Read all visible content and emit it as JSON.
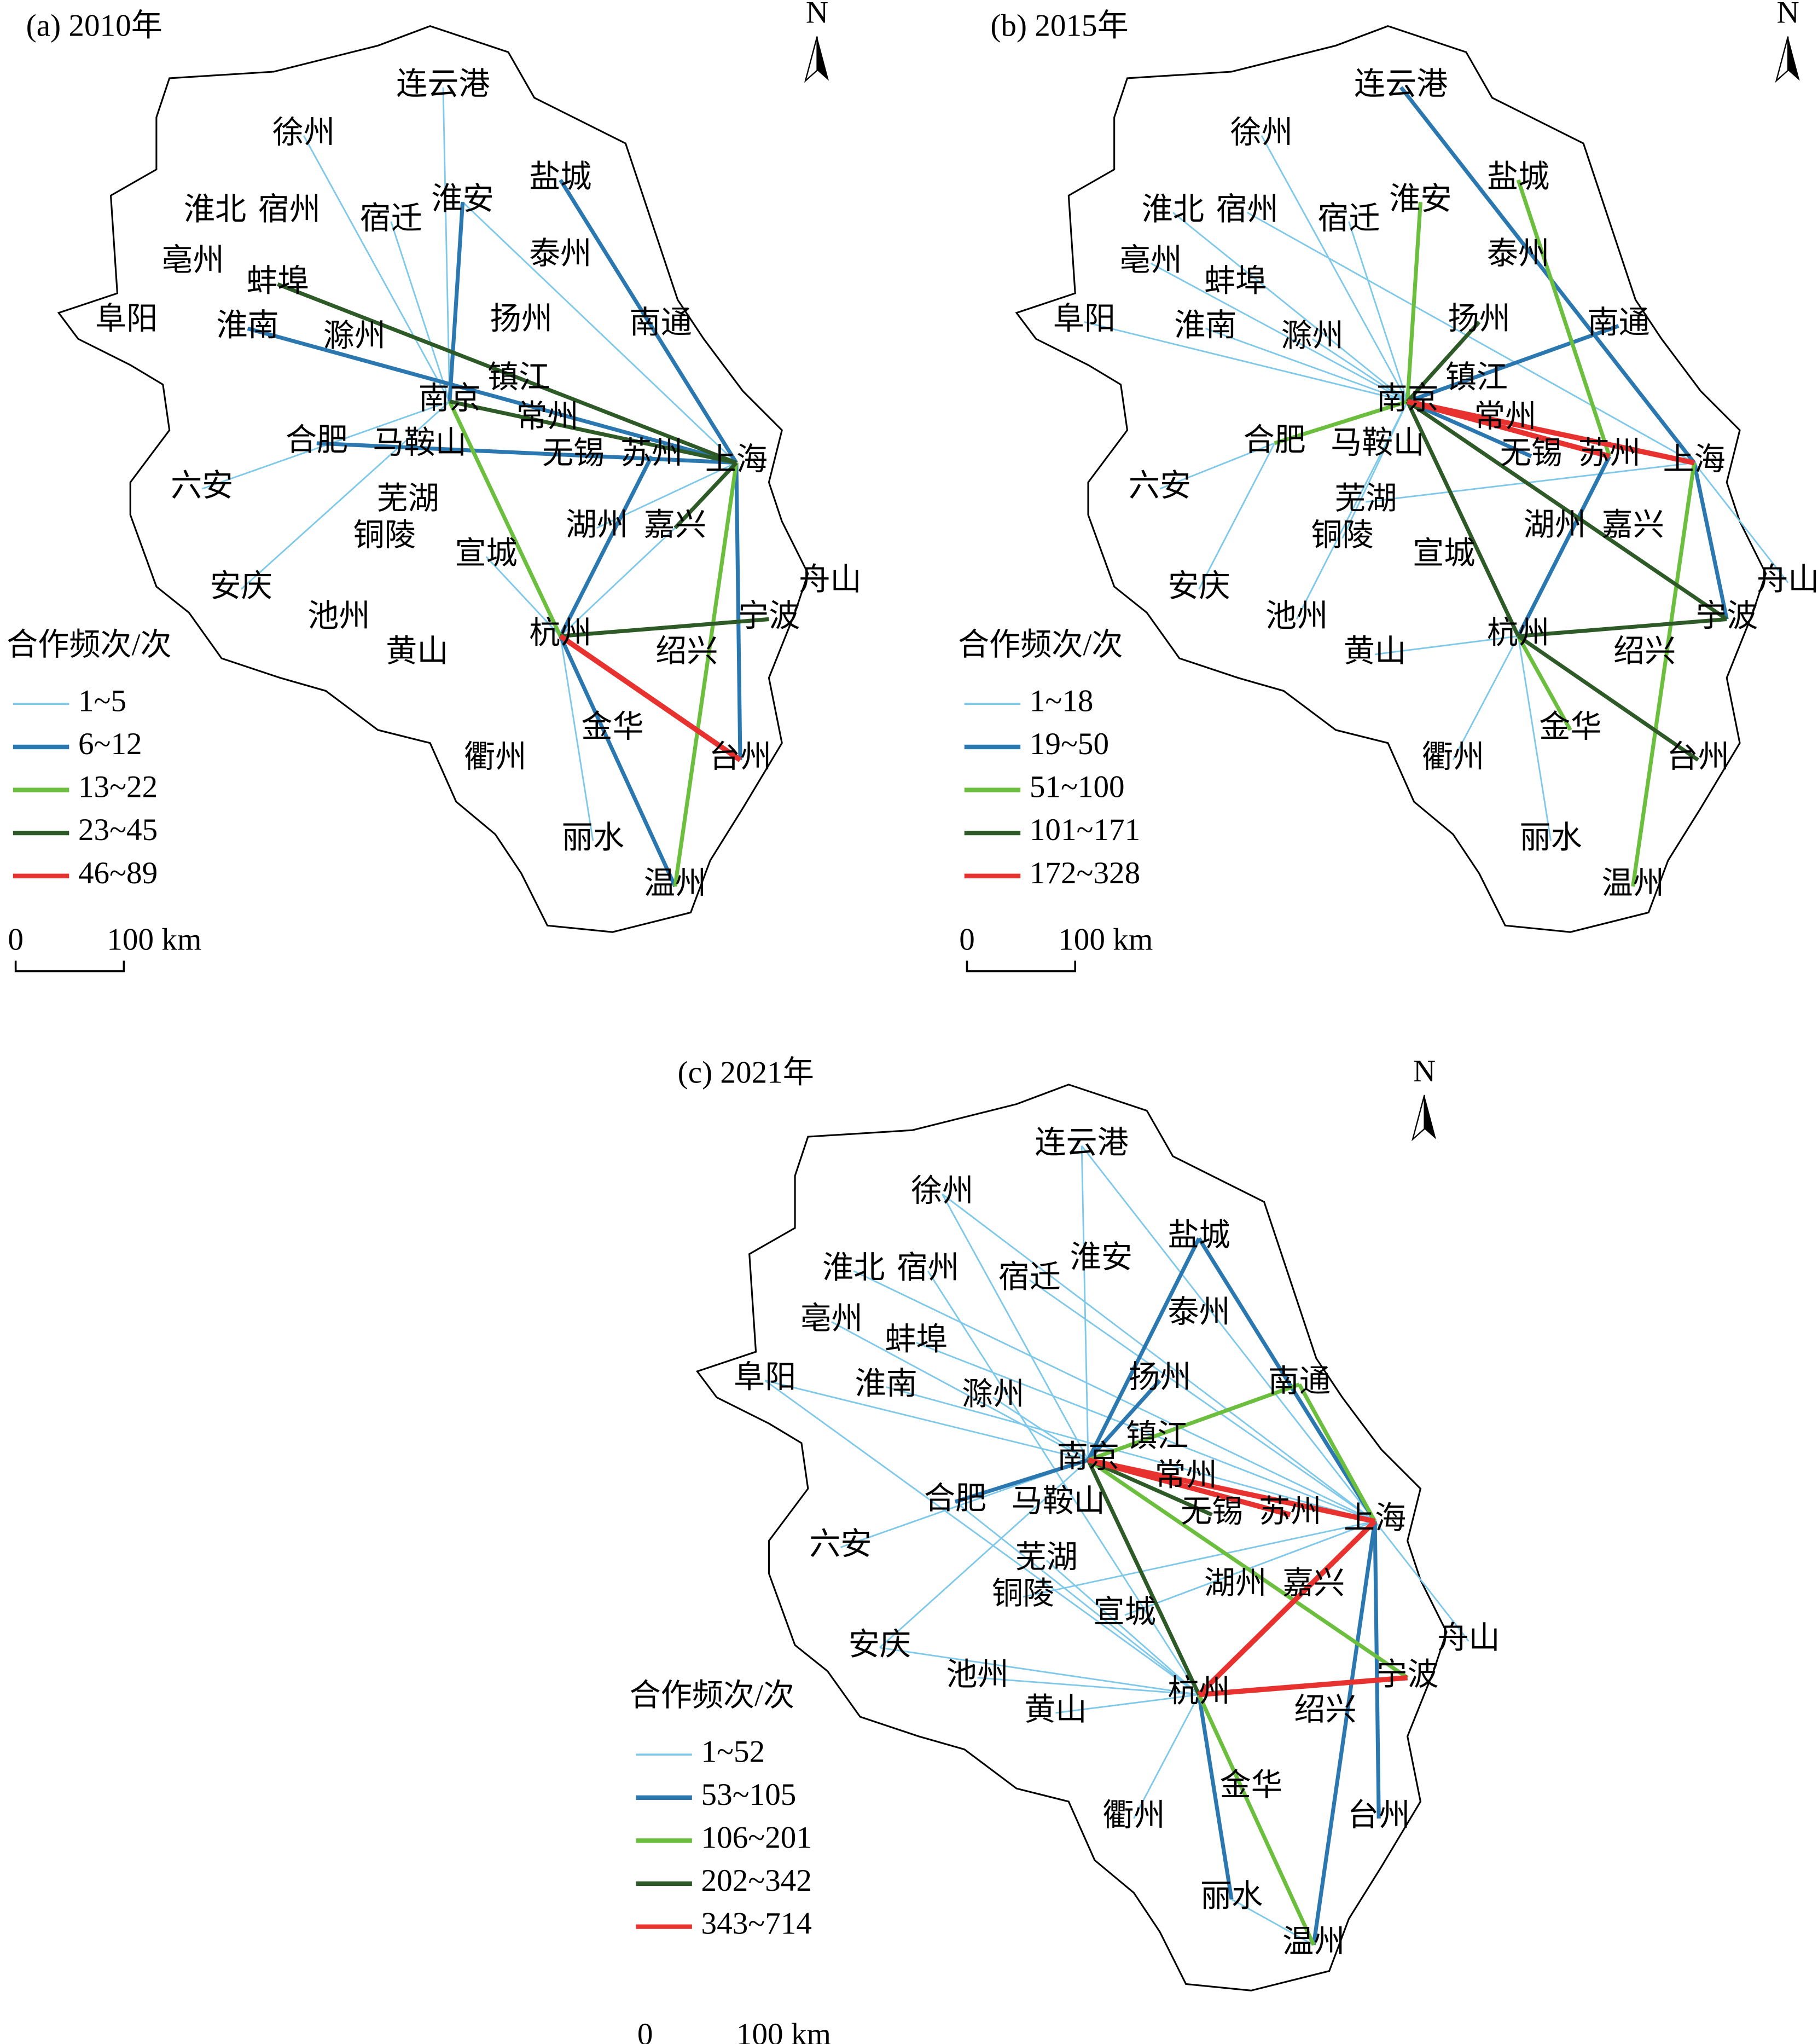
{
  "north": "N",
  "cities": [
    "连云港",
    "徐州",
    "宿迁",
    "淮安",
    "盐城",
    "淮北",
    "宿州",
    "泰州",
    "亳州",
    "蚌埠",
    "扬州",
    "南通",
    "阜阳",
    "淮南",
    "滁州",
    "镇江",
    "南京",
    "常州",
    "合肥",
    "马鞍山",
    "无锡",
    "苏州",
    "上海",
    "六安",
    "芜湖",
    "铜陵",
    "嘉兴",
    "湖州",
    "宣城",
    "安庆",
    "池州",
    "舟山",
    "宁波",
    "杭州",
    "黄山",
    "绍兴",
    "金华",
    "台州",
    "衢州",
    "丽水",
    "温州"
  ],
  "panels": [
    {
      "title": "(a) 2010年",
      "legend": {
        "title": "合作频次/次",
        "items": [
          {
            "label": "1~5",
            "color": "#7ec8ea"
          },
          {
            "label": "6~12",
            "color": "#2b78b0"
          },
          {
            "label": "13~22",
            "color": "#6cbf3e"
          },
          {
            "label": "23~45",
            "color": "#2d5a27"
          },
          {
            "label": "46~89",
            "color": "#e8322f"
          }
        ]
      },
      "scale_bar": {
        "zero": "0",
        "label": "100 km"
      },
      "links": [
        [
          0,
          16,
          0
        ],
        [
          1,
          16,
          0
        ],
        [
          2,
          16,
          0
        ],
        [
          3,
          22,
          0
        ],
        [
          23,
          16,
          0
        ],
        [
          18,
          22,
          0
        ],
        [
          29,
          16,
          0
        ],
        [
          33,
          26,
          0
        ],
        [
          33,
          40,
          0
        ],
        [
          16,
          33,
          0
        ],
        [
          27,
          22,
          0
        ],
        [
          28,
          33,
          0
        ],
        [
          33,
          37,
          0
        ],
        [
          39,
          33,
          0
        ],
        [
          4,
          22,
          1
        ],
        [
          3,
          16,
          1
        ],
        [
          13,
          22,
          1
        ],
        [
          18,
          22,
          1
        ],
        [
          33,
          21,
          1
        ],
        [
          40,
          33,
          1
        ],
        [
          22,
          37,
          1
        ],
        [
          16,
          22,
          2
        ],
        [
          22,
          40,
          2
        ],
        [
          16,
          33,
          2
        ],
        [
          33,
          32,
          2
        ],
        [
          9,
          22,
          3
        ],
        [
          16,
          22,
          3
        ],
        [
          33,
          32,
          3
        ],
        [
          26,
          22,
          3
        ],
        [
          33,
          37,
          4
        ]
      ]
    },
    {
      "title": "(b) 2015年",
      "legend": {
        "title": "合作频次/次",
        "items": [
          {
            "label": "1~18",
            "color": "#7ec8ea"
          },
          {
            "label": "19~50",
            "color": "#2b78b0"
          },
          {
            "label": "51~100",
            "color": "#6cbf3e"
          },
          {
            "label": "101~171",
            "color": "#2d5a27"
          },
          {
            "label": "172~328",
            "color": "#e8322f"
          }
        ]
      },
      "scale_bar": {
        "zero": "0",
        "label": "100 km"
      },
      "links": [
        [
          1,
          16,
          0
        ],
        [
          2,
          16,
          0
        ],
        [
          5,
          16,
          0
        ],
        [
          8,
          16,
          0
        ],
        [
          12,
          16,
          0
        ],
        [
          13,
          16,
          0
        ],
        [
          14,
          16,
          0
        ],
        [
          23,
          18,
          0
        ],
        [
          29,
          18,
          0
        ],
        [
          30,
          16,
          0
        ],
        [
          34,
          33,
          0
        ],
        [
          38,
          33,
          0
        ],
        [
          39,
          33,
          0
        ],
        [
          31,
          22,
          0
        ],
        [
          25,
          16,
          0
        ],
        [
          24,
          22,
          0
        ],
        [
          6,
          22,
          0
        ],
        [
          0,
          22,
          1
        ],
        [
          11,
          16,
          1
        ],
        [
          33,
          21,
          1
        ],
        [
          32,
          22,
          1
        ],
        [
          20,
          16,
          1
        ],
        [
          4,
          21,
          2
        ],
        [
          18,
          16,
          2
        ],
        [
          3,
          16,
          2
        ],
        [
          22,
          40,
          2
        ],
        [
          33,
          36,
          2
        ],
        [
          10,
          16,
          3
        ],
        [
          16,
          33,
          3
        ],
        [
          16,
          32,
          3
        ],
        [
          33,
          37,
          3
        ],
        [
          33,
          32,
          3
        ],
        [
          16,
          22,
          4
        ],
        [
          16,
          21,
          4
        ]
      ]
    },
    {
      "title": "(c) 2021年",
      "legend": {
        "title": "合作频次/次",
        "items": [
          {
            "label": "1~52",
            "color": "#7ec8ea"
          },
          {
            "label": "53~105",
            "color": "#2b78b0"
          },
          {
            "label": "106~201",
            "color": "#6cbf3e"
          },
          {
            "label": "202~342",
            "color": "#2d5a27"
          },
          {
            "label": "343~714",
            "color": "#e8322f"
          }
        ]
      },
      "scale_bar": {
        "zero": "0",
        "label": "100 km"
      },
      "links": [
        [
          0,
          16,
          0
        ],
        [
          1,
          16,
          0
        ],
        [
          5,
          22,
          0
        ],
        [
          8,
          16,
          0
        ],
        [
          12,
          16,
          0
        ],
        [
          13,
          22,
          0
        ],
        [
          14,
          16,
          0
        ],
        [
          23,
          16,
          0
        ],
        [
          29,
          16,
          0
        ],
        [
          30,
          33,
          0
        ],
        [
          34,
          33,
          0
        ],
        [
          38,
          33,
          0
        ],
        [
          25,
          22,
          0
        ],
        [
          24,
          33,
          0
        ],
        [
          28,
          22,
          0
        ],
        [
          1,
          22,
          0
        ],
        [
          0,
          22,
          0
        ],
        [
          6,
          33,
          0
        ],
        [
          9,
          22,
          0
        ],
        [
          12,
          33,
          0
        ],
        [
          29,
          33,
          0
        ],
        [
          39,
          40,
          0
        ],
        [
          31,
          22,
          0
        ],
        [
          2,
          22,
          0
        ],
        [
          18,
          33,
          0
        ],
        [
          4,
          22,
          1
        ],
        [
          4,
          16,
          1
        ],
        [
          18,
          16,
          1
        ],
        [
          40,
          22,
          1
        ],
        [
          39,
          33,
          1
        ],
        [
          37,
          22,
          1
        ],
        [
          10,
          16,
          1
        ],
        [
          16,
          11,
          2
        ],
        [
          11,
          22,
          2
        ],
        [
          33,
          40,
          2
        ],
        [
          16,
          32,
          2
        ],
        [
          16,
          33,
          3
        ],
        [
          16,
          20,
          3
        ],
        [
          16,
          22,
          4
        ],
        [
          16,
          21,
          4
        ],
        [
          33,
          22,
          4
        ],
        [
          33,
          32,
          4
        ]
      ]
    }
  ]
}
